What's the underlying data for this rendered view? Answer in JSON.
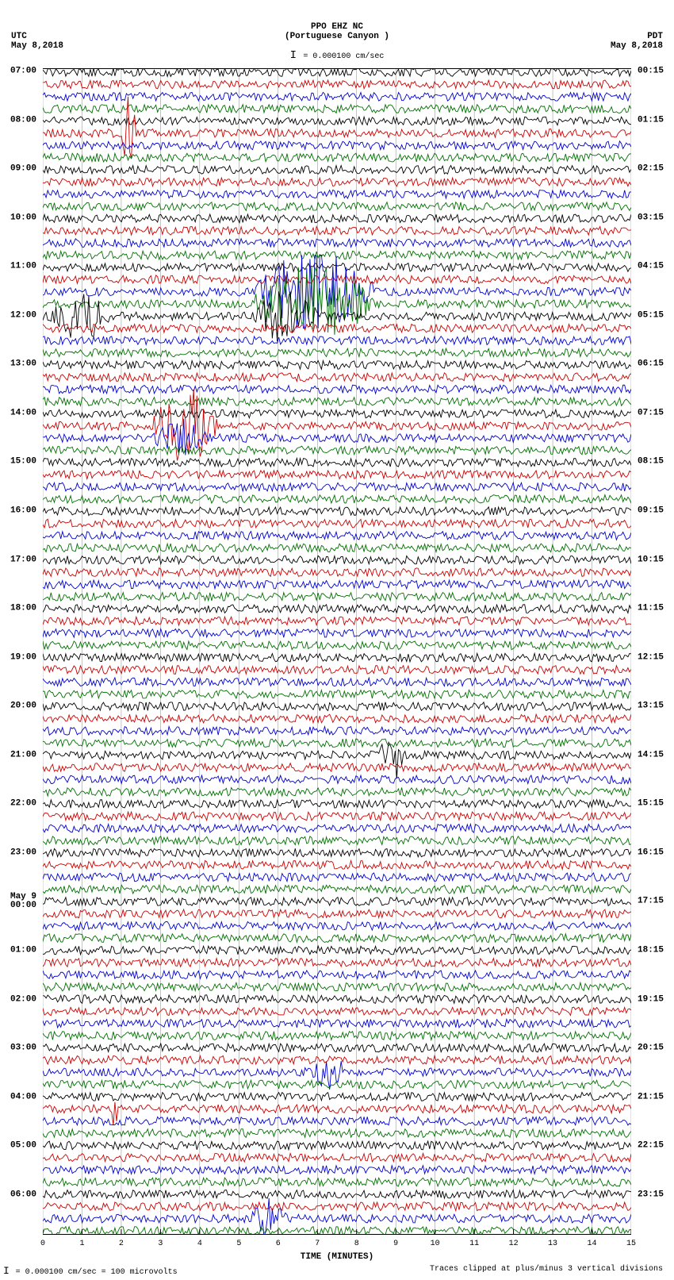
{
  "header": {
    "station": "PPO EHZ NC",
    "location": "(Portuguese Canyon )",
    "scale_text": "= 0.000100 cm/sec",
    "left_tz": "UTC",
    "left_date": "May 8,2018",
    "right_tz": "PDT",
    "right_date": "May 8,2018"
  },
  "colors": {
    "trace_cycle": [
      "#000000",
      "#cc0000",
      "#0000d0",
      "#007000"
    ],
    "grid": "#888888",
    "background": "#ffffff"
  },
  "plot": {
    "n_traces": 96,
    "minutes": 15,
    "clip_divisions": 3
  },
  "left_hour_labels": [
    {
      "row": 0,
      "text": "07:00"
    },
    {
      "row": 4,
      "text": "08:00"
    },
    {
      "row": 8,
      "text": "09:00"
    },
    {
      "row": 12,
      "text": "10:00"
    },
    {
      "row": 16,
      "text": "11:00"
    },
    {
      "row": 20,
      "text": "12:00"
    },
    {
      "row": 24,
      "text": "13:00"
    },
    {
      "row": 28,
      "text": "14:00"
    },
    {
      "row": 32,
      "text": "15:00"
    },
    {
      "row": 36,
      "text": "16:00"
    },
    {
      "row": 40,
      "text": "17:00"
    },
    {
      "row": 44,
      "text": "18:00"
    },
    {
      "row": 48,
      "text": "19:00"
    },
    {
      "row": 52,
      "text": "20:00"
    },
    {
      "row": 56,
      "text": "21:00"
    },
    {
      "row": 60,
      "text": "22:00"
    },
    {
      "row": 64,
      "text": "23:00"
    },
    {
      "row": 68,
      "text": "May 9\n00:00"
    },
    {
      "row": 72,
      "text": "01:00"
    },
    {
      "row": 76,
      "text": "02:00"
    },
    {
      "row": 80,
      "text": "03:00"
    },
    {
      "row": 84,
      "text": "04:00"
    },
    {
      "row": 88,
      "text": "05:00"
    },
    {
      "row": 92,
      "text": "06:00"
    }
  ],
  "right_hour_labels": [
    {
      "row": 0,
      "text": "00:15"
    },
    {
      "row": 4,
      "text": "01:15"
    },
    {
      "row": 8,
      "text": "02:15"
    },
    {
      "row": 12,
      "text": "03:15"
    },
    {
      "row": 16,
      "text": "04:15"
    },
    {
      "row": 20,
      "text": "05:15"
    },
    {
      "row": 24,
      "text": "06:15"
    },
    {
      "row": 28,
      "text": "07:15"
    },
    {
      "row": 32,
      "text": "08:15"
    },
    {
      "row": 36,
      "text": "09:15"
    },
    {
      "row": 40,
      "text": "10:15"
    },
    {
      "row": 44,
      "text": "11:15"
    },
    {
      "row": 48,
      "text": "12:15"
    },
    {
      "row": 52,
      "text": "13:15"
    },
    {
      "row": 56,
      "text": "14:15"
    },
    {
      "row": 60,
      "text": "15:15"
    },
    {
      "row": 64,
      "text": "16:15"
    },
    {
      "row": 68,
      "text": "17:15"
    },
    {
      "row": 72,
      "text": "18:15"
    },
    {
      "row": 76,
      "text": "19:15"
    },
    {
      "row": 80,
      "text": "20:15"
    },
    {
      "row": 84,
      "text": "21:15"
    },
    {
      "row": 88,
      "text": "22:15"
    },
    {
      "row": 92,
      "text": "23:15"
    }
  ],
  "x_ticks": [
    "0",
    "1",
    "2",
    "3",
    "4",
    "5",
    "6",
    "7",
    "8",
    "9",
    "10",
    "11",
    "12",
    "13",
    "14",
    "15"
  ],
  "x_label": "TIME (MINUTES)",
  "bursts": [
    {
      "row": 5,
      "start_min": 2.0,
      "end_min": 2.4,
      "amp": 4.0
    },
    {
      "row": 18,
      "start_min": 5.4,
      "end_min": 8.4,
      "amp": 4.5
    },
    {
      "row": 19,
      "start_min": 5.4,
      "end_min": 8.4,
      "amp": 4.5
    },
    {
      "row": 20,
      "start_min": 0.2,
      "end_min": 1.8,
      "amp": 2.5
    },
    {
      "row": 20,
      "start_min": 5.4,
      "end_min": 7.0,
      "amp": 3.0
    },
    {
      "row": 29,
      "start_min": 2.8,
      "end_min": 4.5,
      "amp": 4.0
    },
    {
      "row": 30,
      "start_min": 2.8,
      "end_min": 4.3,
      "amp": 2.0
    },
    {
      "row": 56,
      "start_min": 8.6,
      "end_min": 9.2,
      "amp": 3.0
    },
    {
      "row": 82,
      "start_min": 6.6,
      "end_min": 8.0,
      "amp": 1.5
    },
    {
      "row": 85,
      "start_min": 1.7,
      "end_min": 2.0,
      "amp": 2.0
    },
    {
      "row": 94,
      "start_min": 5.3,
      "end_min": 6.2,
      "amp": 2.2
    }
  ],
  "footer": {
    "left": "= 0.000100 cm/sec =    100 microvolts",
    "right": "Traces clipped at plus/minus 3 vertical divisions"
  }
}
